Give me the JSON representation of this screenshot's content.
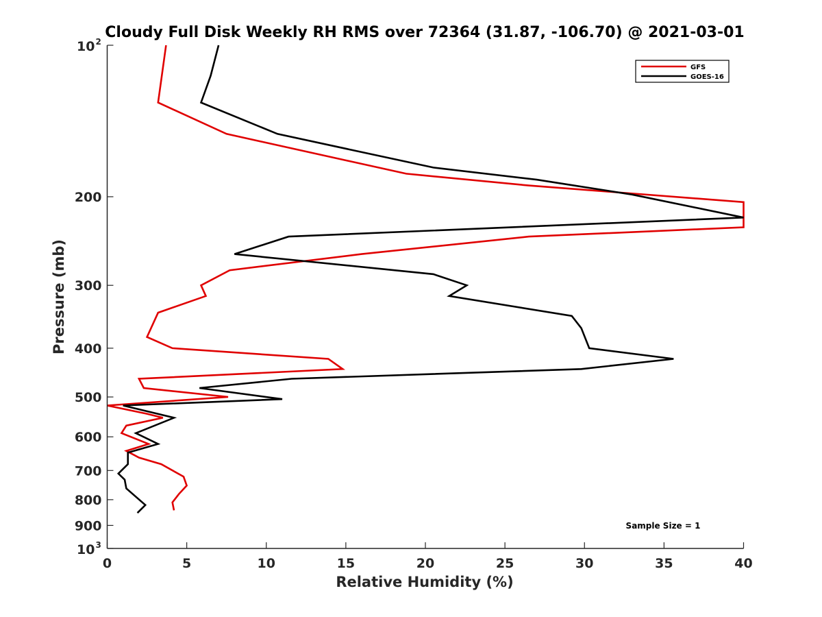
{
  "chart_data": {
    "type": "line",
    "title": "Cloudy Full Disk Weekly RH RMS over 72364 (31.87, -106.70) @ 2021-03-01",
    "xlabel": "Relative Humidity (%)",
    "ylabel": "Pressure (mb)",
    "xlim": [
      0,
      40
    ],
    "ylim": [
      100,
      1000
    ],
    "y_scale": "log",
    "y_reversed": true,
    "grid": false,
    "legend_position": "top-right",
    "x_ticks": [
      "0",
      "5",
      "10",
      "15",
      "20",
      "25",
      "30",
      "35",
      "40"
    ],
    "y_ticks": [
      {
        "value": 100,
        "base": "10",
        "exp": "2"
      },
      {
        "value": 200,
        "label": "200"
      },
      {
        "value": 300,
        "label": "300"
      },
      {
        "value": 400,
        "label": "400"
      },
      {
        "value": 500,
        "label": "500"
      },
      {
        "value": 600,
        "label": "600"
      },
      {
        "value": 700,
        "label": "700"
      },
      {
        "value": 800,
        "label": "800"
      },
      {
        "value": 900,
        "label": "900"
      },
      {
        "value": 1000,
        "base": "10",
        "exp": "3"
      }
    ],
    "annotation": "Sample Size = 1",
    "series": [
      {
        "name": "GFS",
        "color": "#e00000",
        "points": [
          [
            3.7,
            100
          ],
          [
            3.2,
            130
          ],
          [
            7.5,
            150
          ],
          [
            18.8,
            180
          ],
          [
            26.5,
            190
          ],
          [
            40.0,
            205
          ],
          [
            40.0,
            230
          ],
          [
            26.5,
            240
          ],
          [
            16.0,
            260
          ],
          [
            7.7,
            280
          ],
          [
            5.9,
            300
          ],
          [
            6.2,
            315
          ],
          [
            3.2,
            340
          ],
          [
            2.5,
            380
          ],
          [
            4.1,
            400
          ],
          [
            13.9,
            420
          ],
          [
            14.8,
            440
          ],
          [
            2.0,
            460
          ],
          [
            2.3,
            480
          ],
          [
            7.6,
            500
          ],
          [
            0.0,
            520
          ],
          [
            2.5,
            540
          ],
          [
            3.5,
            550
          ],
          [
            1.2,
            570
          ],
          [
            0.9,
            590
          ],
          [
            2.6,
            620
          ],
          [
            1.2,
            640
          ],
          [
            2.0,
            660
          ],
          [
            3.4,
            680
          ],
          [
            4.8,
            720
          ],
          [
            5.0,
            750
          ],
          [
            4.5,
            780
          ],
          [
            4.1,
            810
          ],
          [
            4.2,
            840
          ]
        ]
      },
      {
        "name": "GOES-16",
        "color": "#000000",
        "points": [
          [
            7.0,
            100
          ],
          [
            6.5,
            115
          ],
          [
            5.9,
            130
          ],
          [
            10.7,
            150
          ],
          [
            20.5,
            175
          ],
          [
            27.0,
            185
          ],
          [
            33.0,
            198
          ],
          [
            40.0,
            220
          ],
          [
            11.4,
            240
          ],
          [
            8.0,
            260
          ],
          [
            20.5,
            285
          ],
          [
            22.6,
            300
          ],
          [
            21.5,
            315
          ],
          [
            29.2,
            345
          ],
          [
            29.8,
            365
          ],
          [
            30.3,
            400
          ],
          [
            35.6,
            420
          ],
          [
            29.8,
            440
          ],
          [
            11.6,
            460
          ],
          [
            5.8,
            480
          ],
          [
            11.0,
            505
          ],
          [
            1.0,
            520
          ],
          [
            4.2,
            550
          ],
          [
            1.8,
            590
          ],
          [
            3.2,
            620
          ],
          [
            1.3,
            645
          ],
          [
            1.3,
            680
          ],
          [
            0.7,
            710
          ],
          [
            1.1,
            730
          ],
          [
            1.2,
            760
          ],
          [
            2.4,
            820
          ],
          [
            1.9,
            850
          ]
        ]
      }
    ]
  }
}
